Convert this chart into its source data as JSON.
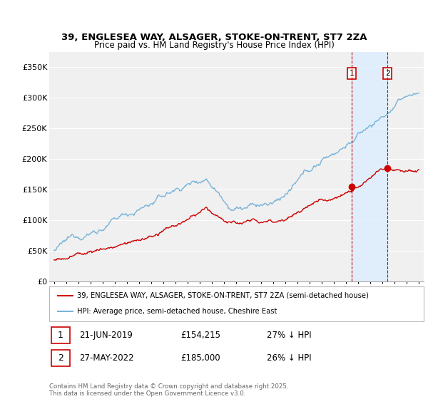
{
  "title_line1": "39, ENGLESEA WAY, ALSAGER, STOKE-ON-TRENT, ST7 2ZA",
  "title_line2": "Price paid vs. HM Land Registry's House Price Index (HPI)",
  "ylim": [
    0,
    375000
  ],
  "yticks": [
    0,
    50000,
    100000,
    150000,
    200000,
    250000,
    300000,
    350000
  ],
  "ytick_labels": [
    "£0",
    "£50K",
    "£100K",
    "£150K",
    "£200K",
    "£250K",
    "£300K",
    "£350K"
  ],
  "background_color": "#ffffff",
  "plot_bg_color": "#f0f0f0",
  "grid_color": "#ffffff",
  "hpi_color": "#7ab4d8",
  "price_color": "#cc0000",
  "vline_color": "#cc0000",
  "shade_color": "#ddeeff",
  "marker1_year": 2019.47,
  "marker2_year": 2022.41,
  "price_at_marker1": 154215,
  "price_at_marker2": 185000,
  "annotation1": {
    "label": "1",
    "date": "21-JUN-2019",
    "price": "£154,215",
    "pct": "27% ↓ HPI"
  },
  "annotation2": {
    "label": "2",
    "date": "27-MAY-2022",
    "price": "£185,000",
    "pct": "26% ↓ HPI"
  },
  "legend_line1": "39, ENGLESEA WAY, ALSAGER, STOKE-ON-TRENT, ST7 2ZA (semi-detached house)",
  "legend_line2": "HPI: Average price, semi-detached house, Cheshire East",
  "footer": "Contains HM Land Registry data © Crown copyright and database right 2025.\nThis data is licensed under the Open Government Licence v3.0."
}
